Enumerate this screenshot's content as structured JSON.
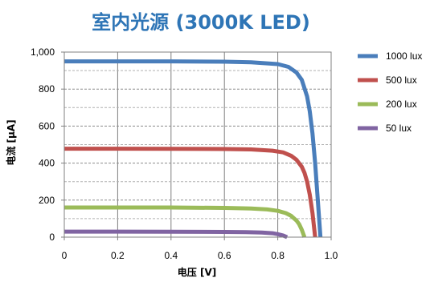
{
  "chart_data": {
    "type": "line",
    "title": "室内光源 (3000K LED)",
    "title_color": "#2e75b6",
    "xlabel": "电压 [V]",
    "ylabel": "电流 [μA]",
    "xlim": [
      0,
      1.0
    ],
    "ylim": [
      0,
      1000
    ],
    "xticks": [
      "0",
      "0.2",
      "0.4",
      "0.6",
      "0.8",
      "1.0"
    ],
    "yticks": [
      "0",
      "200",
      "400",
      "600",
      "800",
      "1,000"
    ],
    "grid": true,
    "legend_position": "right",
    "series": [
      {
        "name": "1000 lux",
        "color": "#4a7ebb",
        "x": [
          0,
          0.2,
          0.4,
          0.6,
          0.7,
          0.8,
          0.84,
          0.87,
          0.89,
          0.91,
          0.92,
          0.93,
          0.94,
          0.95,
          0.96
        ],
        "y": [
          950,
          950,
          950,
          948,
          945,
          935,
          920,
          890,
          850,
          760,
          680,
          560,
          400,
          200,
          0
        ]
      },
      {
        "name": "500 lux",
        "color": "#c0504d",
        "x": [
          0,
          0.2,
          0.4,
          0.6,
          0.7,
          0.78,
          0.82,
          0.85,
          0.87,
          0.89,
          0.9,
          0.91,
          0.92,
          0.93,
          0.94
        ],
        "y": [
          478,
          478,
          477,
          476,
          474,
          467,
          458,
          440,
          418,
          380,
          348,
          300,
          230,
          130,
          0
        ]
      },
      {
        "name": "200 lux",
        "color": "#9bbb59",
        "x": [
          0,
          0.2,
          0.4,
          0.6,
          0.7,
          0.76,
          0.8,
          0.83,
          0.85,
          0.87,
          0.88,
          0.89,
          0.9
        ],
        "y": [
          160,
          160,
          160,
          158,
          155,
          150,
          142,
          130,
          115,
          90,
          70,
          40,
          0
        ]
      },
      {
        "name": "50 lux",
        "color": "#8064a2",
        "x": [
          0,
          0.2,
          0.4,
          0.6,
          0.68,
          0.74,
          0.78,
          0.8,
          0.82,
          0.835
        ],
        "y": [
          30,
          30,
          29,
          28,
          27,
          25,
          21,
          16,
          9,
          0
        ]
      }
    ]
  }
}
